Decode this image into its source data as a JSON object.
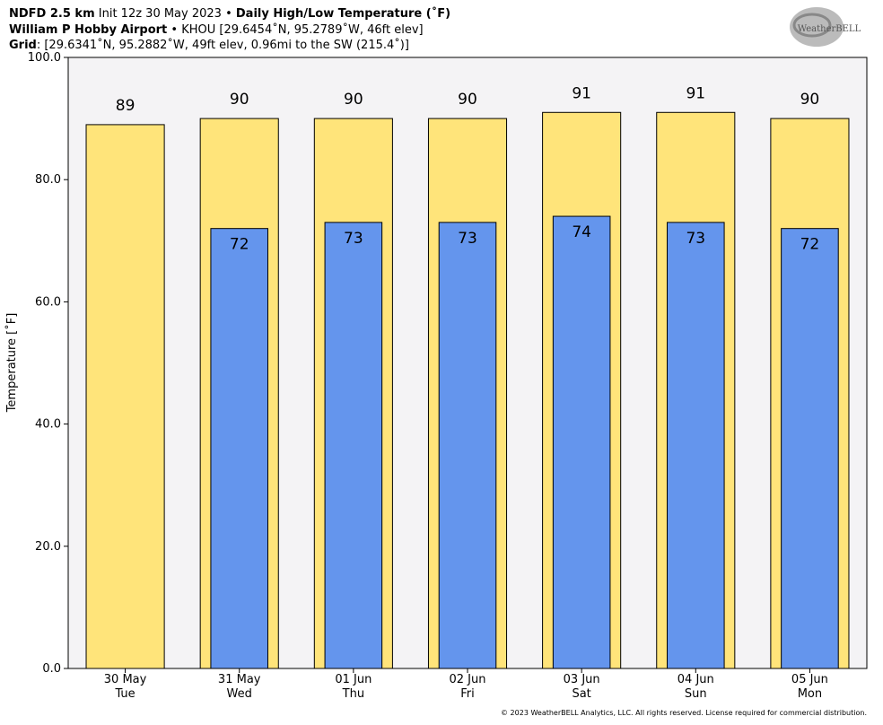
{
  "chart_data": {
    "type": "bar",
    "title_parts": [
      "NDFD 2.5 km",
      " Init 12z 30 May 2023 • ",
      "Daily High/Low Temperature (˚F)"
    ],
    "subtitle_parts": [
      "William P Hobby Airport",
      " • KHOU [29.6454˚N, 95.2789˚W, 46ft elev]"
    ],
    "grid_parts": [
      "Grid",
      ": [29.6341˚N, 95.2882˚W, 49ft elev, 0.96mi to the SW (215.4˚)]"
    ],
    "logo": "WeatherBELL",
    "footer": "© 2023 WeatherBELL Analytics, LLC. All rights reserved. License required for commercial distribution.",
    "y_label": "Temperature [˚F]",
    "categories": [
      "30 May",
      "31 May",
      "01 Jun",
      "02 Jun",
      "03 Jun",
      "04 Jun",
      "05 Jun"
    ],
    "category_days": [
      "Tue",
      "Wed",
      "Thu",
      "Fri",
      "Sat",
      "Sun",
      "Mon"
    ],
    "ylim": [
      0,
      100
    ],
    "yticks": [
      {
        "value": 0,
        "label": "0.0"
      },
      {
        "value": 20,
        "label": "20.0"
      },
      {
        "value": 40,
        "label": "40.0"
      },
      {
        "value": 60,
        "label": "60.0"
      },
      {
        "value": 80,
        "label": "80.0"
      },
      {
        "value": 100,
        "label": "100.0"
      }
    ],
    "background": "#f4f3f5",
    "series": [
      {
        "name": "High",
        "color": "#ffe47a",
        "values": [
          89,
          90,
          90,
          90,
          91,
          91,
          90
        ]
      },
      {
        "name": "Low",
        "color": "#6495ed",
        "values": [
          null,
          72,
          73,
          73,
          74,
          73,
          72
        ]
      }
    ]
  }
}
